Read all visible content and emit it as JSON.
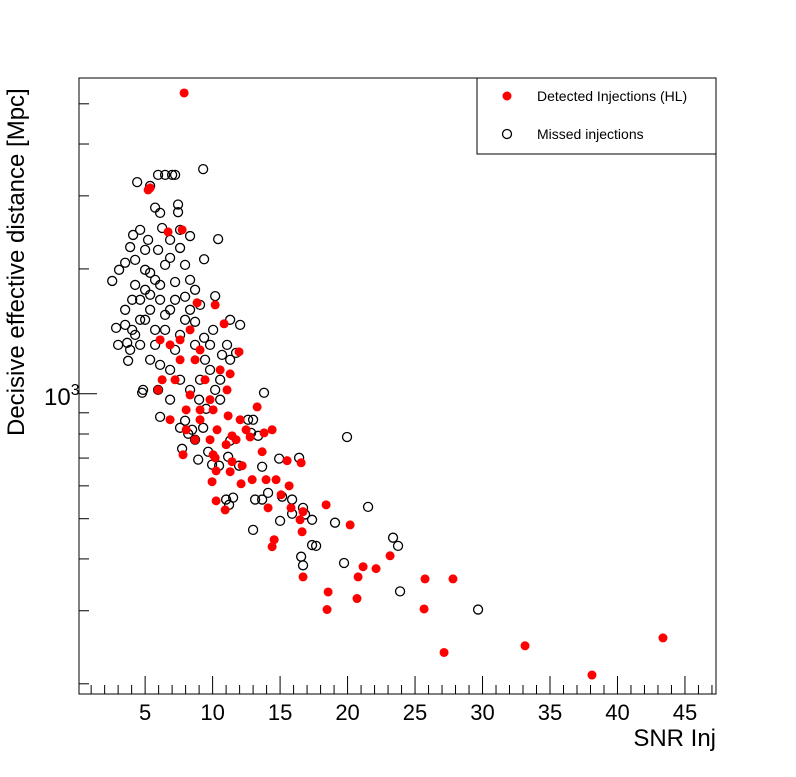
{
  "chart_data": {
    "type": "scatter",
    "title": "",
    "xlabel": "SNR Inj",
    "ylabel": "Decisive effective distance [Mpc]",
    "xlim": [
      0.1,
      47.3
    ],
    "ylim": [
      189,
      5770
    ],
    "yscale": "log",
    "x_ticks": [
      5,
      10,
      15,
      20,
      25,
      30,
      35,
      40,
      45
    ],
    "x_tick_labels": [
      "5",
      "10",
      "15",
      "20",
      "25",
      "30",
      "35",
      "40",
      "45"
    ],
    "y_tick_label": {
      "base": "10",
      "exp": "3",
      "value": 1000
    },
    "grid": false,
    "legend_position": "top-right",
    "colors": {
      "detected": "#ff0000",
      "missed": "#000000"
    },
    "series": [
      {
        "name": "Detected Injections (HL)",
        "marker": "filled-circle",
        "points": [
          [
            7.89,
            5310
          ],
          [
            43.37,
            258
          ],
          [
            33.15,
            247
          ],
          [
            38.11,
            210
          ],
          [
            27.15,
            238
          ],
          [
            25.67,
            303
          ],
          [
            27.81,
            358
          ],
          [
            25.74,
            358
          ],
          [
            23.15,
            407
          ],
          [
            22.11,
            379
          ],
          [
            21.15,
            383
          ],
          [
            20.78,
            362
          ],
          [
            20.7,
            321
          ],
          [
            20.19,
            483
          ],
          [
            18.41,
            540
          ],
          [
            18.56,
            333
          ],
          [
            18.48,
            302
          ],
          [
            16.7,
            520
          ],
          [
            16.7,
            362
          ],
          [
            15.52,
            690
          ],
          [
            16.56,
            682
          ],
          [
            14.41,
            428
          ],
          [
            14.56,
            445
          ],
          [
            16.63,
            465
          ],
          [
            15.67,
            600
          ],
          [
            15.07,
            571
          ],
          [
            14.7,
            621
          ],
          [
            13.96,
            621
          ],
          [
            12.93,
            621
          ],
          [
            13.67,
            725
          ],
          [
            13.81,
            805
          ],
          [
            13.3,
            930
          ],
          [
            12.11,
            607
          ],
          [
            11.3,
            649
          ],
          [
            11.44,
            686
          ],
          [
            11.44,
            792
          ],
          [
            11.15,
            885
          ],
          [
            10.26,
            552
          ],
          [
            10.26,
            652
          ],
          [
            10.93,
            525
          ],
          [
            9.96,
            614
          ],
          [
            10.04,
            713
          ],
          [
            12.78,
            787
          ],
          [
            12.19,
            671
          ],
          [
            14.11,
            531
          ],
          [
            15.81,
            531
          ],
          [
            16.48,
            497
          ],
          [
            14.41,
            819
          ],
          [
            5.22,
            3101
          ],
          [
            5.37,
            3135
          ],
          [
            6.7,
            2456
          ],
          [
            7.74,
            2484
          ],
          [
            8.85,
            1657
          ],
          [
            10.19,
            1638
          ],
          [
            10.85,
            1475
          ],
          [
            11.96,
            1262
          ],
          [
            11.07,
            1022
          ],
          [
            11.3,
            1117
          ],
          [
            10.56,
            1142
          ],
          [
            9.07,
            1276
          ],
          [
            7.59,
            1349
          ],
          [
            9.81,
            968
          ],
          [
            9.07,
            915
          ],
          [
            8.33,
            994
          ],
          [
            7.22,
            1081
          ],
          [
            6.26,
            1081
          ],
          [
            5.96,
            1022
          ],
          [
            6.85,
            866
          ],
          [
            8.04,
            819
          ],
          [
            8.7,
            775
          ],
          [
            7.81,
            713
          ],
          [
            9.07,
            866
          ],
          [
            9.44,
            1081
          ],
          [
            12.04,
            866
          ],
          [
            11.74,
            775
          ],
          [
            11.0,
            754
          ],
          [
            10.33,
            819
          ],
          [
            12.48,
            819
          ],
          [
            9.81,
            775
          ],
          [
            10.04,
            915
          ],
          [
            8.04,
            915
          ],
          [
            10.19,
            701
          ],
          [
            6.11,
            1349
          ],
          [
            6.85,
            1312
          ],
          [
            7.59,
            1208
          ],
          [
            8.7,
            1208
          ],
          [
            8.33,
            1426
          ]
        ]
      },
      {
        "name": "Missed injections",
        "marker": "open-circle",
        "points": [
          [
            29.67,
            302
          ],
          [
            23.89,
            334
          ],
          [
            23.74,
            430
          ],
          [
            23.37,
            450
          ],
          [
            21.52,
            534
          ],
          [
            19.74,
            391
          ],
          [
            19.07,
            489
          ],
          [
            17.67,
            430
          ],
          [
            17.37,
            497
          ],
          [
            16.7,
            386
          ],
          [
            16.56,
            405
          ],
          [
            17.37,
            432
          ],
          [
            16.7,
            531
          ],
          [
            16.85,
            512
          ],
          [
            15.89,
            514
          ],
          [
            15.0,
            494
          ],
          [
            13.67,
            667
          ],
          [
            14.93,
            698
          ],
          [
            15.89,
            556
          ],
          [
            16.41,
            701
          ],
          [
            15.15,
            565
          ],
          [
            14.11,
            577
          ],
          [
            13.67,
            556
          ],
          [
            13.15,
            556
          ],
          [
            13.0,
            470
          ],
          [
            11.0,
            556
          ],
          [
            11.52,
            562
          ],
          [
            11.22,
            540
          ],
          [
            19.96,
            787
          ],
          [
            13.81,
            1006
          ],
          [
            13.0,
            866
          ],
          [
            13.37,
            792
          ],
          [
            12.85,
            805
          ],
          [
            12.63,
            866
          ],
          [
            11.96,
            671
          ],
          [
            11.3,
            771
          ],
          [
            10.48,
            671
          ],
          [
            11.15,
            705
          ],
          [
            9.96,
            675
          ],
          [
            9.67,
            725
          ],
          [
            8.93,
            694
          ],
          [
            8.19,
            801
          ],
          [
            7.59,
            828
          ],
          [
            7.74,
            737
          ],
          [
            8.7,
            775
          ],
          [
            8.48,
            819
          ],
          [
            9.3,
            828
          ],
          [
            9.52,
            920
          ],
          [
            9.0,
            968
          ],
          [
            7.96,
            861
          ],
          [
            6.85,
            968
          ],
          [
            6.11,
            880
          ],
          [
            5.96,
            1022
          ],
          [
            4.85,
            1022
          ],
          [
            4.78,
            1006
          ],
          [
            3.74,
            1201
          ],
          [
            3.0,
            1312
          ],
          [
            3.67,
            1327
          ],
          [
            4.04,
            1426
          ],
          [
            2.85,
            1442
          ],
          [
            2.56,
            1871
          ],
          [
            3.07,
            1990
          ],
          [
            3.52,
            2070
          ],
          [
            3.89,
            2258
          ],
          [
            4.11,
            2415
          ],
          [
            4.41,
            3238
          ],
          [
            5.37,
            3170
          ],
          [
            5.96,
            3370
          ],
          [
            6.48,
            3370
          ],
          [
            7.0,
            3370
          ],
          [
            7.22,
            3370
          ],
          [
            9.3,
            3480
          ],
          [
            7.44,
            2860
          ],
          [
            7.44,
            2740
          ],
          [
            8.33,
            2400
          ],
          [
            10.41,
            2360
          ],
          [
            9.37,
            2110
          ],
          [
            10.19,
            1720
          ],
          [
            12.04,
            1466
          ],
          [
            11.3,
            1508
          ],
          [
            11.74,
            1255
          ],
          [
            11.3,
            1208
          ],
          [
            10.7,
            1241
          ],
          [
            11.07,
            1312
          ],
          [
            10.04,
            1426
          ],
          [
            9.37,
            1365
          ],
          [
            8.7,
            1491
          ],
          [
            7.96,
            1714
          ],
          [
            7.22,
            1860
          ],
          [
            6.11,
            1685
          ],
          [
            5.37,
            1594
          ],
          [
            4.63,
            1508
          ],
          [
            5.0,
            1781
          ],
          [
            5.74,
            1882
          ],
          [
            6.48,
            2045
          ],
          [
            5.0,
            2223
          ],
          [
            4.26,
            2103
          ],
          [
            5.22,
            2350
          ],
          [
            6.11,
            2730
          ],
          [
            5.74,
            2810
          ],
          [
            6.26,
            2510
          ],
          [
            4.63,
            2484
          ],
          [
            5.37,
            1957
          ],
          [
            7.59,
            2247
          ],
          [
            6.85,
            2126
          ],
          [
            7.96,
            2045
          ],
          [
            8.33,
            1882
          ],
          [
            8.7,
            1781
          ],
          [
            4.63,
            1685
          ],
          [
            4.04,
            1685
          ],
          [
            3.52,
            1594
          ],
          [
            4.26,
            1830
          ],
          [
            3.89,
            1276
          ],
          [
            4.63,
            1312
          ],
          [
            5.37,
            1208
          ],
          [
            6.11,
            1174
          ],
          [
            6.85,
            1142
          ],
          [
            7.59,
            1081
          ],
          [
            8.33,
            1022
          ],
          [
            9.07,
            1081
          ],
          [
            9.81,
            1142
          ],
          [
            10.56,
            1081
          ],
          [
            10.19,
            1022
          ],
          [
            9.44,
            1208
          ],
          [
            9.81,
            1312
          ],
          [
            10.56,
            968
          ],
          [
            7.22,
            1276
          ],
          [
            6.48,
            1426
          ],
          [
            5.74,
            1426
          ],
          [
            7.96,
            1508
          ],
          [
            6.85,
            1594
          ],
          [
            6.11,
            1830
          ],
          [
            5.37,
            1733
          ],
          [
            5.0,
            1508
          ],
          [
            5.74,
            1312
          ],
          [
            6.48,
            1550
          ],
          [
            7.22,
            1685
          ],
          [
            7.59,
            1387
          ],
          [
            8.7,
            1312
          ],
          [
            8.33,
            1594
          ],
          [
            9.07,
            1638
          ],
          [
            4.26,
            1387
          ],
          [
            3.52,
            1466
          ],
          [
            5.0,
            1990
          ],
          [
            5.96,
            2223
          ],
          [
            6.85,
            2350
          ],
          [
            7.59,
            2484
          ]
        ]
      }
    ]
  }
}
